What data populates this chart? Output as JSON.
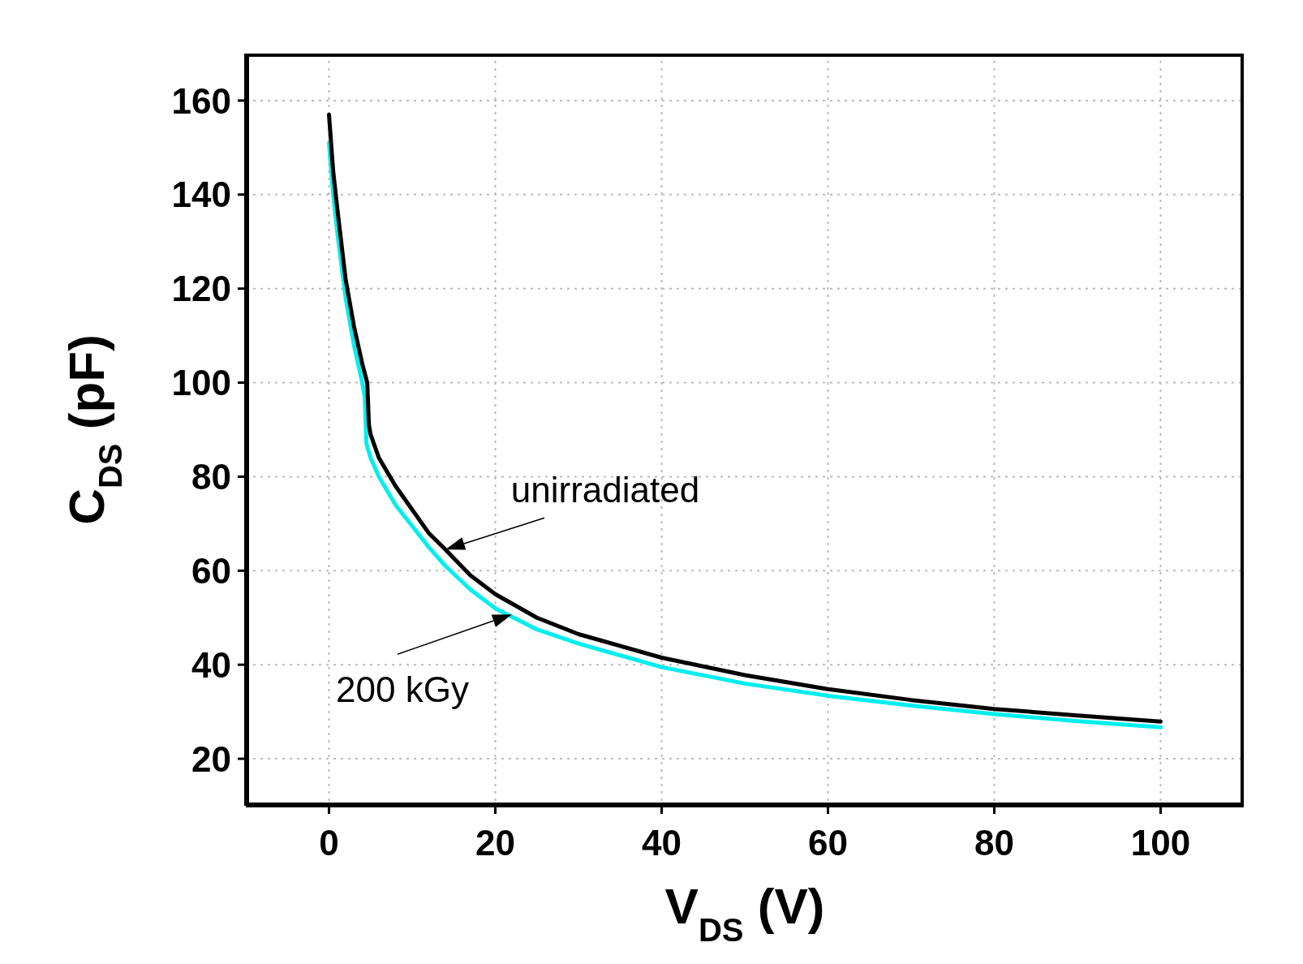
{
  "chart_data": {
    "type": "line",
    "xlabel": "V$_{DS}$ (V)",
    "ylabel": "C$_{DS}$ (pF)",
    "xlim": [
      -10,
      110
    ],
    "xticks": [
      0,
      20,
      40,
      60,
      80,
      100
    ],
    "ylim": [
      10,
      170
    ],
    "yticks": [
      20,
      40,
      60,
      80,
      100,
      120,
      140,
      160
    ],
    "grid": true,
    "legend": false,
    "marker": "none",
    "line_style": "solid",
    "series": [
      {
        "color": "#00eeee",
        "x": [
          0,
          0.5,
          1,
          2,
          3,
          4,
          4.3,
          4.5,
          5,
          6,
          8,
          10,
          12,
          14,
          17,
          20,
          25,
          30,
          40,
          50,
          60,
          70,
          80,
          90,
          100
        ],
        "values": [
          151,
          140,
          132,
          118,
          108,
          100,
          97,
          87,
          84,
          80,
          74,
          69.5,
          65,
          61,
          56,
          52,
          47.5,
          44.5,
          39.5,
          36,
          33.4,
          31.3,
          29.5,
          28,
          26.7
        ]
      },
      {
        "color": "#000000",
        "x": [
          0,
          0.5,
          1,
          2,
          3,
          4,
          4.6,
          4.8,
          5,
          6,
          8,
          10,
          12,
          14,
          17,
          20,
          25,
          30,
          40,
          50,
          60,
          70,
          80,
          90,
          100
        ],
        "values": [
          157,
          145,
          137,
          122,
          112,
          104,
          100,
          91,
          89,
          84,
          78,
          73,
          68,
          64.5,
          59,
          55,
          50,
          46.5,
          41.5,
          37.8,
          34.8,
          32.5,
          30.6,
          29.2,
          27.9
        ]
      }
    ],
    "annotations": [
      {
        "text": "unirradiated",
        "x": 14,
        "y": 64.5
      },
      {
        "text": "200 kGy",
        "x": 22,
        "y": 50.7
      }
    ]
  }
}
